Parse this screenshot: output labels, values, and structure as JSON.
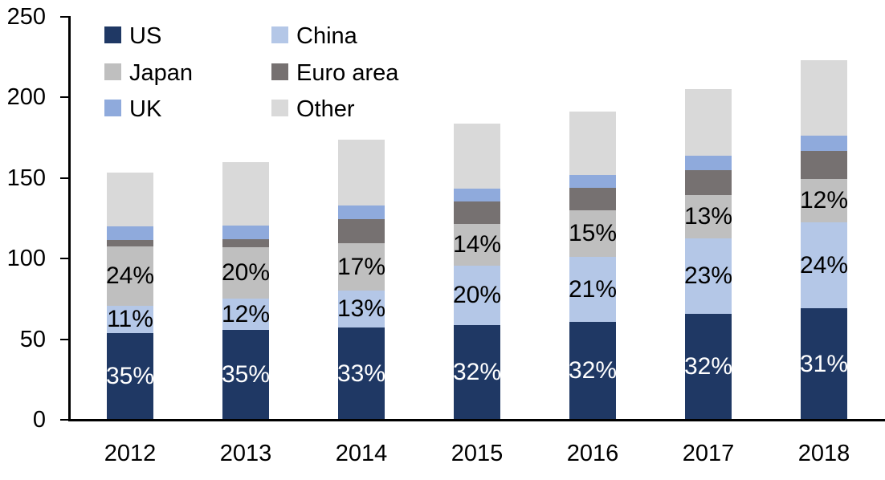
{
  "chart_data": {
    "type": "bar",
    "variant": "stacked-column",
    "title": "",
    "xlabel": "",
    "ylabel": "",
    "categories": [
      "2012",
      "2013",
      "2014",
      "2015",
      "2016",
      "2017",
      "2018"
    ],
    "totals": [
      153.5,
      160,
      174,
      184,
      191,
      205,
      223
    ],
    "ylim": [
      0,
      250
    ],
    "yticks": [
      0,
      50,
      100,
      150,
      200,
      250
    ],
    "grid": "off",
    "legend_position": "top-left-two-columns",
    "series": [
      {
        "name": "US",
        "color": "#1f3864",
        "values": [
          53.7,
          56.0,
          57.4,
          59.0,
          61.0,
          65.5,
          69.1
        ],
        "labels": [
          "35%",
          "35%",
          "33%",
          "32%",
          "32%",
          "32%",
          "31%"
        ],
        "label_color": "#ffffff"
      },
      {
        "name": "China",
        "color": "#b4c7e7",
        "values": [
          16.9,
          19.2,
          22.6,
          36.8,
          40.1,
          47.2,
          53.5
        ],
        "labels": [
          "11%",
          "12%",
          "13%",
          "20%",
          "21%",
          "23%",
          "24%"
        ],
        "label_color": "#000000"
      },
      {
        "name": "Japan",
        "color": "#bfbfbf",
        "values": [
          36.8,
          32.0,
          29.6,
          25.8,
          28.7,
          26.7,
          26.8
        ],
        "labels": [
          "24%",
          "20%",
          "17%",
          "14%",
          "15%",
          "13%",
          "12%"
        ],
        "label_color": "#000000"
      },
      {
        "name": "Euro area",
        "color": "#767171",
        "values": [
          4.0,
          5.0,
          14.9,
          14.0,
          14.0,
          15.5,
          17.4
        ],
        "labels": null,
        "label_color": "#000000"
      },
      {
        "name": "UK",
        "color": "#8faadc",
        "values": [
          8.4,
          8.5,
          8.5,
          8.0,
          8.0,
          8.9,
          9.5
        ],
        "labels": null,
        "label_color": "#000000"
      },
      {
        "name": "Other",
        "color": "#d9d9d9",
        "values": [
          33.7,
          39.3,
          41.0,
          40.4,
          39.2,
          41.2,
          46.7
        ],
        "labels": null,
        "label_color": "#000000"
      }
    ],
    "legend_items": [
      "US",
      "China",
      "Japan",
      "Euro area",
      "UK",
      "Other"
    ],
    "axis_color": "#000000",
    "text_color": "#000000",
    "background_color": "#ffffff"
  }
}
